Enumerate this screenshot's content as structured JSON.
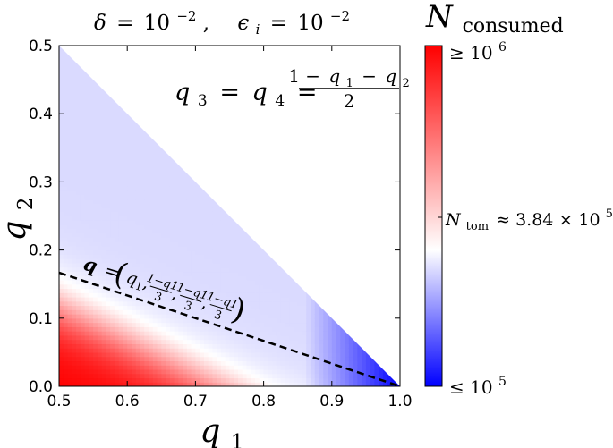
{
  "chart_data": {
    "type": "heatmap",
    "title": {
      "delta_symbol": "δ",
      "delta_value": "10",
      "delta_exp": "−2",
      "eps_symbol": "ϵ",
      "eps_sub": "i",
      "eps_value": "10",
      "eps_exp": "−2",
      "equals": "=",
      "comma": ","
    },
    "xlabel": {
      "symbol": "q",
      "sub": "1"
    },
    "ylabel": {
      "symbol": "q",
      "sub": "2"
    },
    "xlim": [
      0.5,
      1.0
    ],
    "ylim": [
      0.0,
      0.5
    ],
    "xticks": [
      "0.5",
      "0.6",
      "0.7",
      "0.8",
      "0.9",
      "1.0"
    ],
    "yticks": [
      "0.0",
      "0.1",
      "0.2",
      "0.3",
      "0.4",
      "0.5"
    ],
    "domain_constraint": "q1 + q2 <= 1",
    "annotation_equation": {
      "lhs": "q3 = q4 =",
      "lhs_q": "q",
      "lhs_sub3": "3",
      "lhs_sub4": "4",
      "equals": "=",
      "numerator": "1 − q1 − q2",
      "num_one": "1 −",
      "num_q": "q",
      "num_sub1": "1",
      "num_minus": "−",
      "num_sub2": "2",
      "denominator": "2"
    },
    "dashed_line": {
      "label_q": "q",
      "label_eq": "=",
      "label_lparen": "(",
      "label_rparen": ")",
      "label_first": "q1",
      "label_frac_num": "1−q1",
      "label_frac_den": "3",
      "x": [
        0.5,
        1.0
      ],
      "y": [
        0.1667,
        0.0
      ],
      "style": "dashed",
      "color": "#000000"
    },
    "colorbar": {
      "label_symbol": "N",
      "label_sub": "consumed",
      "top_label": "≥ 10",
      "top_exp": "6",
      "bottom_label": "≤ 10",
      "bottom_exp": "5",
      "mid_label_symbol": "N",
      "mid_label_sub": "tom",
      "mid_label_value": "≈ 3.84 × 10",
      "mid_label_exp": "5",
      "scale": "log",
      "vmin": 100000,
      "vmax": 1000000,
      "vcenter": 384000,
      "colors": {
        "low": "#0000ff",
        "mid": "#ffffff",
        "high": "#ff0000"
      }
    },
    "field_description_points": [
      {
        "q1": 0.55,
        "q2": 0.1,
        "N": 1000000
      },
      {
        "q1": 0.7,
        "q2": 0.1,
        "N": 700000
      },
      {
        "q1": 0.8,
        "q2": 0.1,
        "N": 384000
      },
      {
        "q1": 0.9,
        "q2": 0.05,
        "N": 150000
      },
      {
        "q1": 0.8,
        "q2": 0.18,
        "N": 384000
      }
    ],
    "grid": false
  }
}
